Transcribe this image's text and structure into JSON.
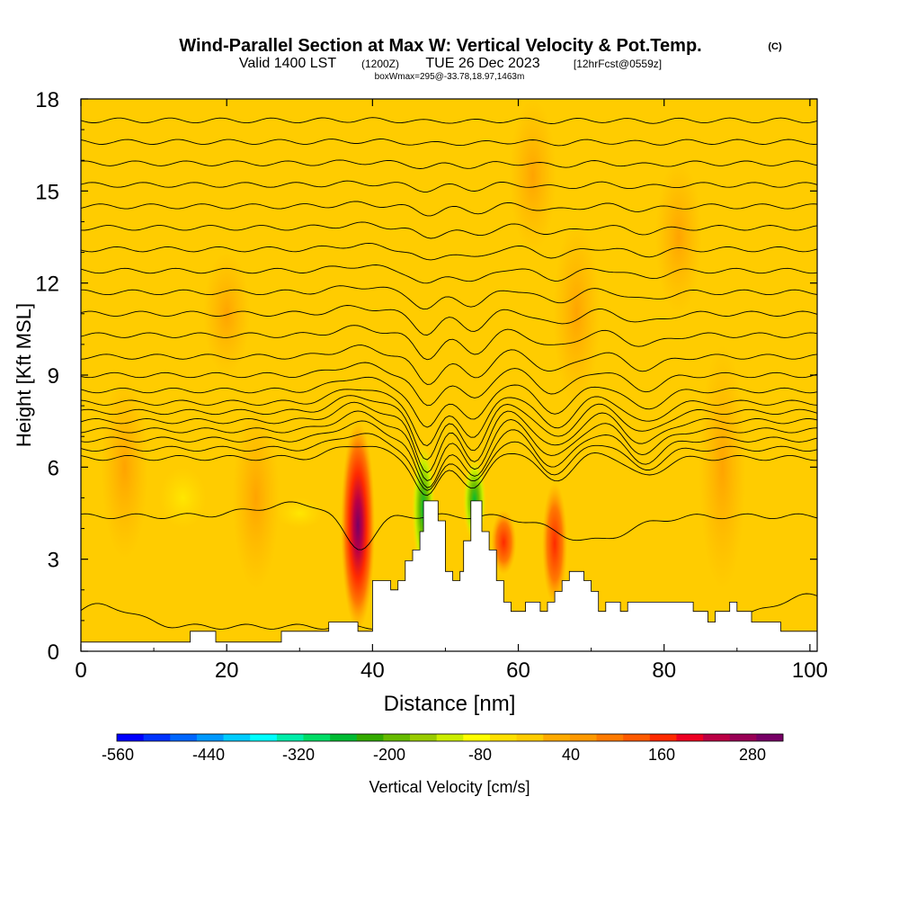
{
  "title": {
    "main": "Wind-Parallel Section at Max W: Vertical Velocity & Pot.Temp.",
    "copyright": "(C)",
    "valid_prefix": "Valid 1400 LST",
    "valid_z": "(1200Z)",
    "valid_date": "TUE 26 Dec 2023",
    "forecast": "[12hrFcst@0559z]",
    "boxmax": "boxWmax=295@-33.78,18.97,1463m"
  },
  "chart_data": {
    "type": "heatmap",
    "xlabel": "Distance [nm]",
    "ylabel": "Height [Kft MSL]",
    "xlim": [
      0,
      101
    ],
    "ylim": [
      0,
      18
    ],
    "x_ticks": [
      "0",
      "20",
      "40",
      "60",
      "80",
      "100"
    ],
    "y_ticks": [
      "0",
      "3",
      "6",
      "9",
      "12",
      "15",
      "18"
    ],
    "terrain_kft": [
      [
        0,
        0.3
      ],
      [
        15,
        0.3
      ],
      [
        15,
        0.65
      ],
      [
        18.5,
        0.65
      ],
      [
        18.5,
        0.3
      ],
      [
        27.5,
        0.3
      ],
      [
        27.5,
        0.65
      ],
      [
        34,
        0.65
      ],
      [
        34,
        0.95
      ],
      [
        38,
        0.95
      ],
      [
        38,
        0.65
      ],
      [
        39.5,
        0.65
      ],
      [
        40,
        0.65
      ],
      [
        40,
        2.3
      ],
      [
        42.5,
        2.3
      ],
      [
        42.5,
        2
      ],
      [
        43.5,
        2
      ],
      [
        43.5,
        2.3
      ],
      [
        44.5,
        2.3
      ],
      [
        44.5,
        2.95
      ],
      [
        45.5,
        2.95
      ],
      [
        45.5,
        3.3
      ],
      [
        46.5,
        3.3
      ],
      [
        46.5,
        3.9
      ],
      [
        47,
        3.9
      ],
      [
        47,
        4.9
      ],
      [
        49,
        4.9
      ],
      [
        49,
        4.25
      ],
      [
        50,
        4.25
      ],
      [
        50,
        2.6
      ],
      [
        51,
        2.6
      ],
      [
        51,
        2.3
      ],
      [
        52,
        2.3
      ],
      [
        52,
        2.6
      ],
      [
        52.5,
        2.6
      ],
      [
        52.5,
        3.6
      ],
      [
        53.5,
        3.6
      ],
      [
        53.5,
        4.9
      ],
      [
        55,
        4.9
      ],
      [
        55,
        3.9
      ],
      [
        56,
        3.9
      ],
      [
        56,
        3.3
      ],
      [
        57,
        3.3
      ],
      [
        57,
        2.3
      ],
      [
        58,
        2.3
      ],
      [
        58,
        1.6
      ],
      [
        59,
        1.6
      ],
      [
        59,
        1.3
      ],
      [
        61,
        1.3
      ],
      [
        61,
        1.6
      ],
      [
        63,
        1.6
      ],
      [
        63,
        1.3
      ],
      [
        64,
        1.3
      ],
      [
        64,
        1.6
      ],
      [
        65,
        1.6
      ],
      [
        65,
        1.95
      ],
      [
        66,
        1.95
      ],
      [
        66,
        2.3
      ],
      [
        67,
        2.3
      ],
      [
        67,
        2.6
      ],
      [
        69,
        2.6
      ],
      [
        69,
        2.3
      ],
      [
        70,
        2.3
      ],
      [
        70,
        1.95
      ],
      [
        71,
        1.95
      ],
      [
        71,
        1.3
      ],
      [
        72,
        1.3
      ],
      [
        72,
        1.6
      ],
      [
        74,
        1.6
      ],
      [
        74,
        1.3
      ],
      [
        75,
        1.3
      ],
      [
        75,
        1.6
      ],
      [
        84,
        1.6
      ],
      [
        84,
        1.3
      ],
      [
        86,
        1.3
      ],
      [
        86,
        0.95
      ],
      [
        87,
        0.95
      ],
      [
        87,
        1.3
      ],
      [
        89,
        1.3
      ],
      [
        89,
        1.6
      ],
      [
        90,
        1.6
      ],
      [
        90,
        1.3
      ],
      [
        92,
        1.3
      ],
      [
        92,
        0.95
      ],
      [
        96,
        0.95
      ],
      [
        96,
        0.65
      ],
      [
        101,
        0.65
      ]
    ],
    "vertical_velocity_features": [
      {
        "x": 38,
        "y_bottom": 0.7,
        "y_top": 7.5,
        "peak": 295,
        "kind": "updraft"
      },
      {
        "x": 47,
        "y_bottom": 2.5,
        "y_top": 6.8,
        "peak": -200,
        "kind": "downdraft"
      },
      {
        "x": 54,
        "y_bottom": 3.5,
        "y_top": 6.3,
        "peak": -240,
        "kind": "downdraft"
      },
      {
        "x": 58,
        "y_bottom": 2.5,
        "y_top": 4.6,
        "peak": 160,
        "kind": "updraft"
      },
      {
        "x": 65,
        "y_bottom": 1.5,
        "y_top": 5.5,
        "peak": 100,
        "kind": "updraft"
      }
    ],
    "isentropes": [
      {
        "label": "",
        "base_kft": 0.8,
        "amp_scale": 0.0
      },
      {
        "label": "",
        "base_kft": 4.4,
        "amp_scale": 0.25
      },
      {
        "label": "",
        "base_kft": 6.3,
        "amp_scale": 0.8
      },
      {
        "label": "",
        "base_kft": 6.6,
        "amp_scale": 0.9
      },
      {
        "label": "",
        "base_kft": 6.9,
        "amp_scale": 1.0
      },
      {
        "label": "",
        "base_kft": 7.2,
        "amp_scale": 1.0
      },
      {
        "label": "",
        "base_kft": 7.5,
        "amp_scale": 1.0
      },
      {
        "label": "",
        "base_kft": 7.8,
        "amp_scale": 0.95
      },
      {
        "label": "",
        "base_kft": 8.1,
        "amp_scale": 0.9
      },
      {
        "label": "",
        "base_kft": 8.5,
        "amp_scale": 0.8
      },
      {
        "label": "",
        "base_kft": 9.0,
        "amp_scale": 0.65
      },
      {
        "label": "",
        "base_kft": 9.6,
        "amp_scale": 0.55
      },
      {
        "label": "",
        "base_kft": 10.3,
        "amp_scale": 0.45
      },
      {
        "label": "",
        "base_kft": 11.0,
        "amp_scale": 0.4
      },
      {
        "label": "",
        "base_kft": 11.7,
        "amp_scale": 0.35
      },
      {
        "label": "",
        "base_kft": 12.4,
        "amp_scale": 0.3
      },
      {
        "label": "",
        "base_kft": 13.1,
        "amp_scale": 0.25
      },
      {
        "label": "",
        "base_kft": 13.8,
        "amp_scale": 0.2
      },
      {
        "label": "",
        "base_kft": 14.5,
        "amp_scale": 0.15
      },
      {
        "label": "",
        "base_kft": 15.2,
        "amp_scale": 0.1
      },
      {
        "label": "",
        "base_kft": 15.9,
        "amp_scale": 0.08
      },
      {
        "label": "",
        "base_kft": 16.6,
        "amp_scale": 0.05
      },
      {
        "label": "",
        "base_kft": 17.3,
        "amp_scale": 0.03
      }
    ],
    "colorbar": {
      "label": "Vertical Velocity [cm/s]",
      "tick_labels": [
        "-560",
        "-440",
        "-320",
        "-200",
        "-80",
        "40",
        "160",
        "280"
      ],
      "colors": [
        "#0000ff",
        "#0033ff",
        "#0066ff",
        "#0099ff",
        "#00ccff",
        "#00ffff",
        "#00eeaa",
        "#00dd66",
        "#00bb33",
        "#33aa00",
        "#66bb00",
        "#99cc00",
        "#ccee00",
        "#ffff00",
        "#ffe000",
        "#ffcc00",
        "#ffaa00",
        "#ff9900",
        "#ff7a00",
        "#ff5a00",
        "#ff2a00",
        "#ee0022",
        "#bb0044",
        "#990055",
        "#770066"
      ]
    }
  }
}
